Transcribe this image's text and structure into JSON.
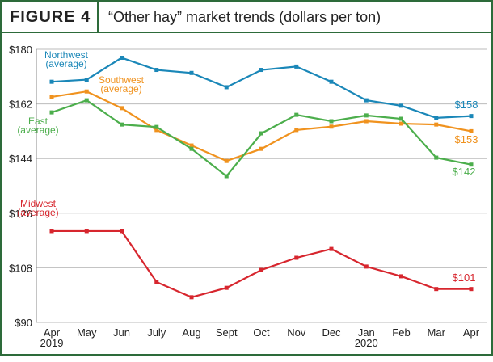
{
  "header": {
    "label": "FIGURE 4",
    "title": "“Other hay” market trends (dollars per ton)"
  },
  "chart_data": {
    "type": "line",
    "categories": [
      "Apr",
      "May",
      "Jun",
      "July",
      "Aug",
      "Sept",
      "Oct",
      "Nov",
      "Dec",
      "Jan",
      "Feb",
      "Mar",
      "Apr"
    ],
    "years": [
      "2019",
      null,
      null,
      null,
      null,
      null,
      null,
      null,
      null,
      "2020",
      null,
      null,
      null
    ],
    "ylim": [
      90,
      180
    ],
    "yticks": [
      {
        "value": 90,
        "label": "$90"
      },
      {
        "value": 108,
        "label": "$108"
      },
      {
        "value": 126,
        "label": "$126"
      },
      {
        "value": 144,
        "label": "$144"
      },
      {
        "value": 162,
        "label": "$162"
      },
      {
        "value": 180,
        "label": "$180"
      }
    ],
    "grid": true,
    "series": [
      {
        "name": "Northwest",
        "note": "(average)",
        "color": "#1a87b8",
        "values": [
          169.3,
          170,
          177.2,
          173.2,
          172.2,
          167.5,
          173.2,
          174.3,
          169.3,
          163.2,
          161.4,
          157.4,
          158
        ],
        "value_labels": [
          null,
          null,
          null,
          null,
          null,
          null,
          null,
          null,
          null,
          null,
          null,
          null,
          "$158"
        ]
      },
      {
        "name": "Southwest",
        "note": "(average)",
        "color": "#f0921e",
        "values": [
          164.3,
          166.1,
          160.6,
          153.4,
          148.3,
          143.2,
          147.2,
          153.4,
          154.5,
          156.3,
          155.5,
          155.2,
          153
        ],
        "value_labels": [
          null,
          null,
          null,
          null,
          null,
          null,
          null,
          null,
          null,
          null,
          null,
          null,
          "$153"
        ]
      },
      {
        "name": "East",
        "note": "(average)",
        "color": "#4cae4c",
        "values": [
          159.2,
          163.2,
          155.2,
          154.4,
          147.2,
          138.2,
          152.3,
          158.4,
          156.3,
          158.2,
          157.1,
          144.3,
          142
        ],
        "value_labels": [
          null,
          null,
          null,
          null,
          null,
          null,
          null,
          null,
          null,
          null,
          null,
          null,
          "$142"
        ]
      },
      {
        "name": "Midwest",
        "note": "(average)",
        "color": "#d7262e",
        "values": [
          120.1,
          120.1,
          120.1,
          103.3,
          98.3,
          101.4,
          107.3,
          111.3,
          114.2,
          108.4,
          105.2,
          101,
          101
        ],
        "value_labels": [
          null,
          null,
          null,
          null,
          null,
          null,
          null,
          null,
          null,
          null,
          null,
          null,
          "$101"
        ]
      }
    ]
  }
}
